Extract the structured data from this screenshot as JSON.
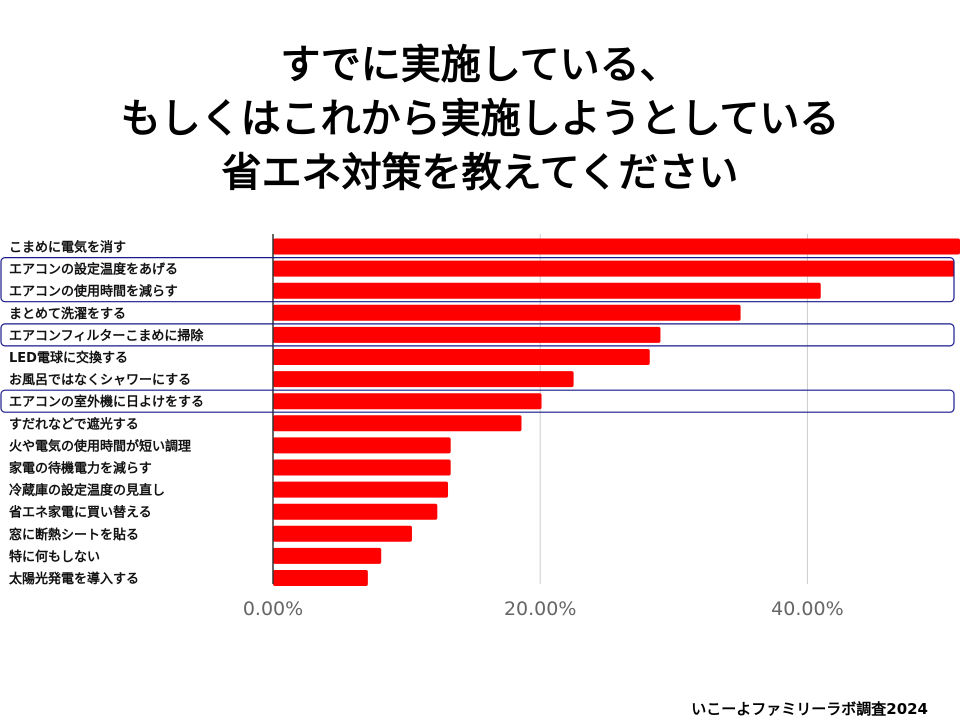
{
  "title_lines": [
    "すでに実施している、",
    "もしくはこれから実施しようとしている",
    "省エネ対策を教えてください"
  ],
  "credit": "いこーよファミリーラボ調査2024",
  "colors": {
    "bar": "#ff0000",
    "highlight": "#1a1a8c",
    "grid": "#cccccc",
    "axis": "#333333"
  },
  "chart_data": {
    "type": "bar",
    "orientation": "horizontal",
    "title": "すでに実施している、もしくはこれから実施しようとしている省エネ対策を教えてください",
    "xlabel": "",
    "ylabel": "",
    "xlim": [
      0,
      52
    ],
    "ticks": [
      0,
      20,
      40
    ],
    "tick_labels": [
      "0.00%",
      "20.00%",
      "40.00%"
    ],
    "grid": true,
    "categories": [
      "こまめに電気を消す",
      "エアコンの設定温度をあげる",
      "エアコンの使用時間を減らす",
      "まとめて洗濯をする",
      "エアコンフィルターこまめに掃除",
      "LED電球に交換する",
      "お風呂ではなくシャワーにする",
      "エアコンの室外機に日よけをする",
      "すだれなどで遮光する",
      "火や電気の使用時間が短い調理",
      "家電の待機電力を減らす",
      "冷蔵庫の設定温度の見直し",
      "省エネ家電に買い替える",
      "窓に断熱シートを貼る",
      "特に何もしない",
      "太陽光発電を導入する"
    ],
    "values": [
      52,
      51,
      41,
      35,
      29,
      28.2,
      22.5,
      20.1,
      18.6,
      13.3,
      13.3,
      13.1,
      12.3,
      10.4,
      8.1,
      7.1
    ],
    "highlight_groups": [
      [
        "エアコンの設定温度をあげる",
        "エアコンの使用時間を減らす"
      ],
      [
        "エアコンフィルターこまめに掃除"
      ],
      [
        "エアコンの室外機に日よけをする"
      ]
    ]
  }
}
